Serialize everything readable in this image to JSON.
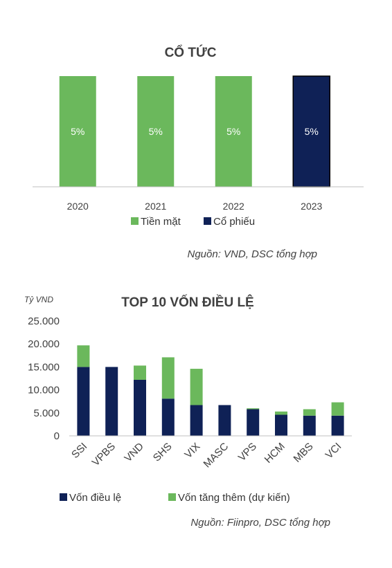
{
  "colors": {
    "green": "#6bb85c",
    "navy": "#0f2156",
    "axis": "#bfbfbf"
  },
  "chart_data": [
    {
      "type": "bar",
      "title": "CỔ TỨC",
      "categories": [
        "2020",
        "2021",
        "2022",
        "2023"
      ],
      "series": [
        {
          "name": "Tiền mặt",
          "values": [
            5,
            5,
            5,
            0
          ],
          "color": "#6bb85c"
        },
        {
          "name": "Cổ phiếu",
          "values": [
            0,
            0,
            0,
            5
          ],
          "color": "#0f2156"
        }
      ],
      "data_labels": [
        "5%",
        "5%",
        "5%",
        "5%"
      ],
      "stacked": true,
      "ylim": [
        0,
        5
      ],
      "grid": false,
      "legend": "bottom",
      "source": "Nguồn: VND, DSC tổng hợp"
    },
    {
      "type": "bar",
      "title": "TOP 10 VỐN ĐIỀU LỆ",
      "unit": "Tỷ VND",
      "categories": [
        "SSI",
        "VPBS",
        "VND",
        "SHS",
        "VIX",
        "MASC",
        "VPS",
        "HCM",
        "MBS",
        "VCI"
      ],
      "series": [
        {
          "name": "Vốn điều lệ",
          "values": [
            15000,
            15000,
            12200,
            8100,
            6700,
            6700,
            5800,
            4600,
            4400,
            4400
          ],
          "color": "#0f2156"
        },
        {
          "name": "Vốn tăng thêm (dự kiến)",
          "values": [
            4700,
            0,
            3100,
            9000,
            7900,
            0,
            200,
            700,
            1400,
            2900
          ],
          "color": "#6bb85c"
        }
      ],
      "stacked": true,
      "ylim": [
        0,
        25000
      ],
      "yticks": [
        "25.000",
        "20.000",
        "15.000",
        "10.000",
        "5.000",
        "0"
      ],
      "grid": false,
      "legend": "bottom",
      "source": "Nguồn: Fiinpro, DSC tổng hợp"
    }
  ]
}
